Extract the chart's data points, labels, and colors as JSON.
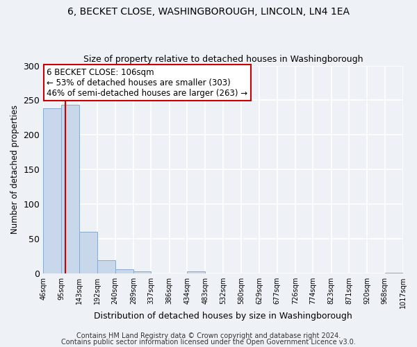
{
  "title": "6, BECKET CLOSE, WASHINGBOROUGH, LINCOLN, LN4 1EA",
  "subtitle": "Size of property relative to detached houses in Washingborough",
  "xlabel": "Distribution of detached houses by size in Washingborough",
  "ylabel": "Number of detached properties",
  "bar_edges": [
    46,
    95,
    143,
    192,
    240,
    289,
    337,
    386,
    434,
    483,
    532,
    580,
    629,
    677,
    726,
    774,
    823,
    871,
    920,
    968,
    1017
  ],
  "bar_heights": [
    238,
    243,
    60,
    19,
    6,
    3,
    0,
    0,
    3,
    0,
    0,
    0,
    0,
    0,
    0,
    0,
    0,
    0,
    0,
    1
  ],
  "bar_color": "#c8d8ea",
  "bar_edge_color": "#88aacc",
  "property_line_x": 106,
  "property_line_color": "#cc0000",
  "annotation_line1": "6 BECKET CLOSE: 106sqm",
  "annotation_line2": "← 53% of detached houses are smaller (303)",
  "annotation_line3": "46% of semi-detached houses are larger (263) →",
  "annotation_box_color": "#ffffff",
  "annotation_box_edge_color": "#cc0000",
  "ylim": [
    0,
    300
  ],
  "yticks": [
    0,
    50,
    100,
    150,
    200,
    250,
    300
  ],
  "xtick_labels": [
    "46sqm",
    "95sqm",
    "143sqm",
    "192sqm",
    "240sqm",
    "289sqm",
    "337sqm",
    "386sqm",
    "434sqm",
    "483sqm",
    "532sqm",
    "580sqm",
    "629sqm",
    "677sqm",
    "726sqm",
    "774sqm",
    "823sqm",
    "871sqm",
    "920sqm",
    "968sqm",
    "1017sqm"
  ],
  "footer1": "Contains HM Land Registry data © Crown copyright and database right 2024.",
  "footer2": "Contains public sector information licensed under the Open Government Licence v3.0.",
  "bg_color": "#eef2f7",
  "plot_bg_color": "#eef2f7",
  "grid_color": "#ffffff",
  "title_fontsize": 10,
  "subtitle_fontsize": 9,
  "annotation_fontsize": 8.5,
  "footer_fontsize": 7
}
